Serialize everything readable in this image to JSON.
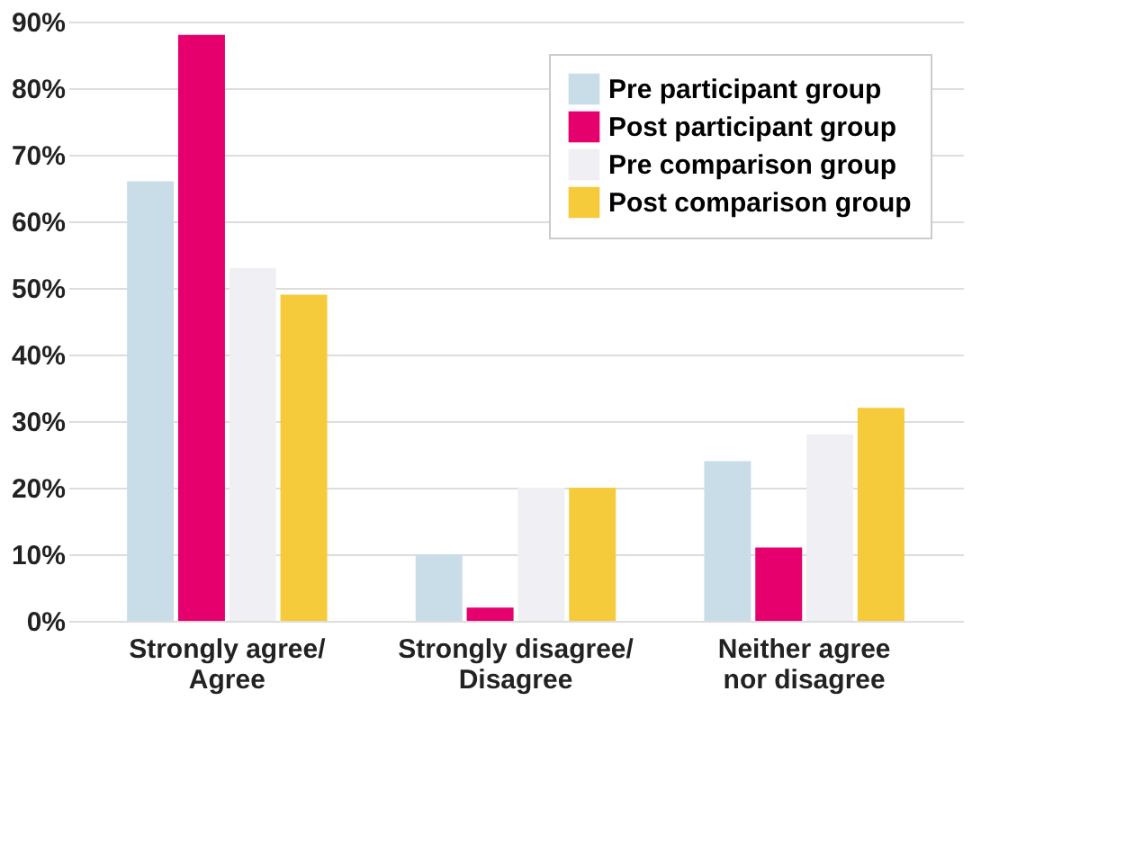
{
  "chart_data": {
    "type": "bar",
    "categories": [
      "Strongly agree/\nAgree",
      "Strongly disagree/\nDisagree",
      "Neither agree\nnor disagree"
    ],
    "series": [
      {
        "name": "Pre participant group",
        "color": "#c9dde9",
        "values": [
          66,
          10,
          24
        ]
      },
      {
        "name": "Post participant group",
        "color": "#e6006e",
        "values": [
          88,
          2,
          11
        ]
      },
      {
        "name": "Pre comparison group",
        "color": "#f0f0f4",
        "values": [
          53,
          20,
          28
        ]
      },
      {
        "name": "Post comparison group",
        "color": "#f5cb3c",
        "values": [
          49,
          20,
          32
        ]
      }
    ],
    "ylim": [
      0,
      90
    ],
    "yticks": [
      {
        "value": 0,
        "label": "0%"
      },
      {
        "value": 10,
        "label": "10%"
      },
      {
        "value": 20,
        "label": "20%"
      },
      {
        "value": 30,
        "label": "30%"
      },
      {
        "value": 40,
        "label": "40%"
      },
      {
        "value": 50,
        "label": "50%"
      },
      {
        "value": 60,
        "label": "60%"
      },
      {
        "value": 70,
        "label": "70%"
      },
      {
        "value": 80,
        "label": "80%"
      },
      {
        "value": 90,
        "label": "90%"
      }
    ],
    "grid": "y",
    "legend": "top right"
  }
}
